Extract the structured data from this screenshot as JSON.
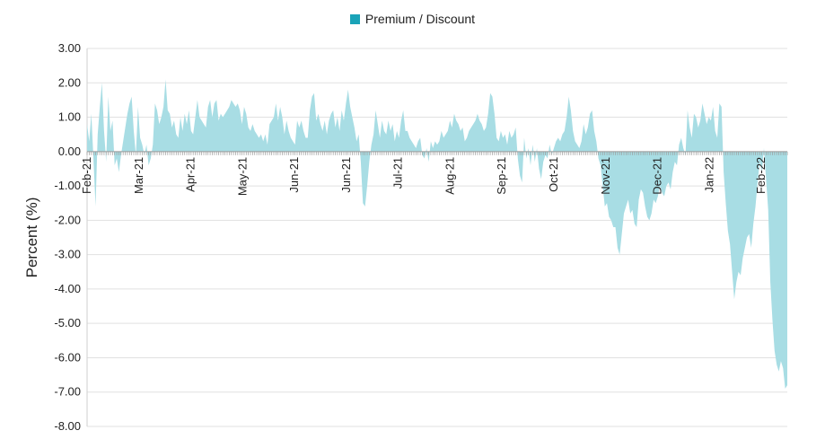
{
  "chart_data": {
    "type": "area",
    "title": "",
    "ylabel": "Percent (%)",
    "xlabel": "",
    "legend": {
      "position": "top-center",
      "entries": [
        {
          "name": "Premium / Discount",
          "color": "#1aa3b8"
        }
      ]
    },
    "ylim": [
      -8,
      3
    ],
    "y_ticks": [
      "3.00",
      "2.00",
      "1.00",
      "0.00",
      "-1.00",
      "-2.00",
      "-3.00",
      "-4.00",
      "-5.00",
      "-6.00",
      "-7.00",
      "-8.00"
    ],
    "x_ticks": [
      "Feb-21",
      "Mar-21",
      "Apr-21",
      "May-21",
      "Jun-21",
      "Jun-21",
      "Jul-21",
      "Aug-21",
      "Sep-21",
      "Oct-21",
      "Nov-21",
      "Dec-21",
      "Jan-22",
      "Feb-22"
    ],
    "grid": true,
    "fill_color": "#a8dde4",
    "series": [
      {
        "name": "Premium / Discount",
        "values": [
          0.8,
          0.3,
          1.1,
          -0.2,
          -1.6,
          0.5,
          1.3,
          2.0,
          0.6,
          -0.3,
          1.6,
          0.6,
          0.9,
          -0.4,
          -0.2,
          -0.6,
          -0.1,
          0.3,
          0.7,
          1.1,
          1.4,
          1.6,
          0.6,
          -0.1,
          1.3,
          0.4,
          0.2,
          -0.1,
          0.2,
          -0.4,
          -0.2,
          0.2,
          1.4,
          1.2,
          0.8,
          1.0,
          1.3,
          2.1,
          1.2,
          1.1,
          0.7,
          0.9,
          0.5,
          0.4,
          1.0,
          0.6,
          1.1,
          0.8,
          1.2,
          0.6,
          0.5,
          1.0,
          1.5,
          1.0,
          0.9,
          0.8,
          0.7,
          1.3,
          1.5,
          1.0,
          1.4,
          1.5,
          0.9,
          1.1,
          1.0,
          1.1,
          1.2,
          1.3,
          1.5,
          1.4,
          1.3,
          1.4,
          1.2,
          0.8,
          1.3,
          1.1,
          0.7,
          0.6,
          0.8,
          0.6,
          0.5,
          0.4,
          0.5,
          0.3,
          0.5,
          0.2,
          0.8,
          0.9,
          1.0,
          1.4,
          0.9,
          1.3,
          1.0,
          0.5,
          0.9,
          0.6,
          0.4,
          0.3,
          0.2,
          0.9,
          0.7,
          0.9,
          0.6,
          0.4,
          0.4,
          1.2,
          1.6,
          1.7,
          0.9,
          1.1,
          0.8,
          0.6,
          0.9,
          0.5,
          0.9,
          1.1,
          1.2,
          0.7,
          1.0,
          0.6,
          1.2,
          0.9,
          1.4,
          1.8,
          1.3,
          1.0,
          0.7,
          0.3,
          0.5,
          -0.3,
          -1.5,
          -1.6,
          -1.0,
          -0.3,
          0.2,
          0.5,
          1.2,
          0.8,
          0.4,
          0.9,
          0.6,
          0.5,
          0.9,
          0.6,
          0.8,
          0.3,
          0.6,
          0.4,
          0.9,
          1.2,
          0.6,
          0.6,
          0.4,
          0.3,
          0.2,
          0.1,
          0.3,
          0.4,
          -0.1,
          -0.2,
          0.1,
          -0.3,
          0.3,
          0.1,
          0.3,
          0.2,
          0.3,
          0.6,
          0.4,
          0.5,
          0.6,
          0.9,
          0.7,
          1.1,
          0.9,
          0.8,
          0.6,
          0.7,
          0.3,
          0.4,
          0.6,
          0.7,
          0.8,
          0.9,
          1.1,
          0.9,
          0.8,
          0.6,
          0.7,
          1.1,
          1.7,
          1.6,
          1.1,
          0.4,
          0.3,
          0.6,
          0.4,
          0.5,
          0.2,
          0.6,
          0.4,
          0.5,
          0.7,
          -0.2,
          -0.7,
          -0.9,
          0.4,
          -0.2,
          0.1,
          -0.4,
          0.2,
          -0.3,
          0.1,
          -0.5,
          -0.8,
          -0.3,
          -0.1,
          -0.2,
          0.2,
          -0.1,
          0.1,
          0.3,
          0.4,
          0.3,
          0.5,
          0.6,
          1.0,
          1.6,
          1.2,
          0.6,
          0.3,
          0.2,
          0.1,
          0.3,
          0.8,
          0.5,
          0.7,
          1.1,
          1.2,
          0.6,
          0.3,
          -0.2,
          -0.4,
          -1.0,
          -1.6,
          -1.5,
          -1.9,
          -2.0,
          -2.2,
          -2.2,
          -2.8,
          -3.0,
          -2.4,
          -1.8,
          -1.6,
          -1.4,
          -1.8,
          -1.7,
          -2.1,
          -2.2,
          -1.4,
          -1.1,
          -1.2,
          -1.6,
          -1.9,
          -2.0,
          -1.8,
          -1.4,
          -1.5,
          -1.3,
          -1.0,
          -1.2,
          -1.3,
          -1.0,
          -0.9,
          -1.1,
          -0.6,
          -0.3,
          -0.4,
          0.2,
          0.4,
          0.1,
          -0.1,
          1.2,
          0.7,
          0.4,
          1.1,
          1.0,
          0.7,
          0.9,
          1.4,
          1.1,
          0.8,
          1.0,
          0.9,
          1.3,
          0.6,
          0.4,
          1.4,
          1.3,
          -0.6,
          -1.5,
          -2.3,
          -2.7,
          -3.5,
          -4.3,
          -3.8,
          -3.5,
          -3.6,
          -3.1,
          -2.8,
          -2.5,
          -2.4,
          -2.8,
          -2.1,
          -1.6,
          -0.9,
          -0.3,
          -0.6,
          0.1,
          -0.8,
          -1.7,
          -3.8,
          -4.9,
          -5.8,
          -6.2,
          -6.4,
          -6.1,
          -6.3,
          -6.9,
          -6.8
        ]
      }
    ]
  }
}
